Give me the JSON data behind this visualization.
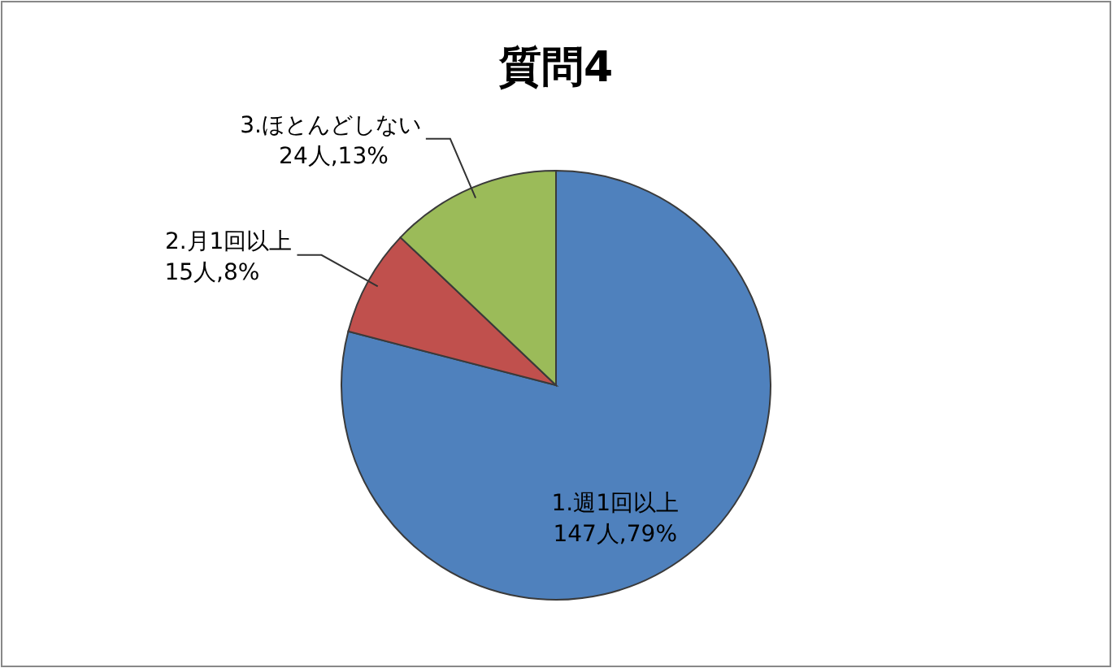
{
  "chart_data": {
    "type": "pie",
    "title": "質問4",
    "categories": [
      "1.週1回以上",
      "2.月1回以上",
      "3.ほとんどしない"
    ],
    "values": [
      147,
      15,
      24
    ],
    "value_labels": [
      "147人,79%",
      "15人,8%",
      "24人,13%"
    ],
    "colors": [
      "#4f81bd",
      "#c0504d",
      "#9bbb59"
    ]
  }
}
